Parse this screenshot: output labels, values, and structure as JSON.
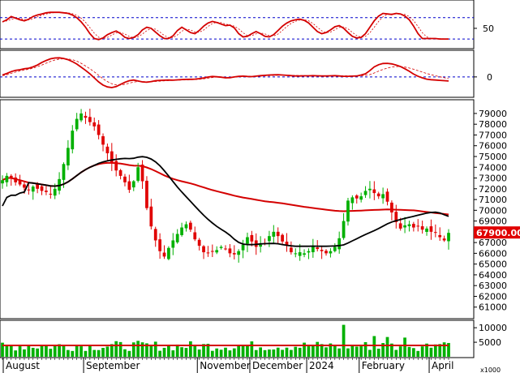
{
  "chart_data": {
    "type": "stock-candlestick",
    "last_price_label": "67900.00",
    "volume_unit": "x1000",
    "x_months": [
      "August",
      "September",
      "November",
      "December",
      "2024",
      "February",
      "April"
    ],
    "colors": {
      "up": "#00b000",
      "down": "#e00000",
      "ma_long": "#d40000",
      "ma_short": "#000000",
      "rsi": "#d40000",
      "signal": "#d40000",
      "ref_line": "#0000cc",
      "last_label_bg": "#e00000"
    },
    "rsi_panel": {
      "y_ticks": [
        {
          "value": 50,
          "label": "50"
        }
      ],
      "ylim": [
        15,
        100
      ],
      "ref_levels": [
        30,
        70
      ],
      "series": [
        62,
        66,
        72,
        69,
        66,
        64,
        67,
        72,
        75,
        77,
        79,
        80,
        80,
        80,
        79,
        78,
        75,
        70,
        62,
        52,
        40,
        31,
        29,
        32,
        38,
        42,
        45,
        40,
        33,
        31,
        33,
        38,
        47,
        52,
        50,
        43,
        36,
        31,
        31,
        36,
        46,
        52,
        47,
        42,
        40,
        46,
        54,
        60,
        63,
        61,
        58,
        55,
        56,
        51,
        40,
        34,
        35,
        40,
        44,
        40,
        35,
        34,
        38,
        46,
        54,
        60,
        64,
        66,
        67,
        65,
        60,
        52,
        44,
        40,
        42,
        47,
        53,
        55,
        50,
        42,
        35,
        32,
        33,
        40,
        52,
        64,
        73,
        78,
        77,
        76,
        78,
        77,
        73,
        66,
        54,
        40,
        31,
        31,
        31,
        31,
        30,
        30,
        30
      ]
    },
    "macd_panel": {
      "y_ticks": [
        {
          "value": 0,
          "label": "0"
        }
      ],
      "ylim": [
        -1200,
        1600
      ],
      "zero_line": 0,
      "series": [
        120,
        220,
        340,
        420,
        460,
        520,
        560,
        640,
        760,
        920,
        1050,
        1160,
        1210,
        1220,
        1180,
        1100,
        980,
        820,
        620,
        420,
        200,
        -60,
        -320,
        -520,
        -640,
        -680,
        -620,
        -480,
        -340,
        -240,
        -200,
        -260,
        -320,
        -340,
        -300,
        -240,
        -220,
        -210,
        -200,
        -210,
        -190,
        -170,
        -160,
        -150,
        -140,
        -110,
        -70,
        -10,
        30,
        10,
        -20,
        -60,
        -50,
        0,
        40,
        50,
        30,
        20,
        50,
        80,
        100,
        120,
        130,
        140,
        120,
        100,
        80,
        60,
        60,
        70,
        70,
        80,
        70,
        60,
        60,
        70,
        80,
        60,
        40,
        40,
        50,
        60,
        120,
        200,
        400,
        640,
        780,
        860,
        870,
        830,
        760,
        660,
        520,
        360,
        180,
        40,
        -60,
        -140,
        -180,
        -200,
        -220,
        -240,
        -260
      ],
      "signal": [
        80,
        140,
        230,
        310,
        380,
        440,
        490,
        560,
        650,
        760,
        880,
        990,
        1080,
        1140,
        1160,
        1150,
        1100,
        1010,
        870,
        700,
        520,
        320,
        100,
        -120,
        -300,
        -440,
        -510,
        -520,
        -470,
        -400,
        -330,
        -300,
        -300,
        -310,
        -310,
        -290,
        -270,
        -250,
        -230,
        -220,
        -210,
        -200,
        -190,
        -180,
        -170,
        -150,
        -120,
        -80,
        -40,
        -10,
        -10,
        -20,
        -30,
        -20,
        0,
        20,
        30,
        30,
        35,
        50,
        65,
        80,
        95,
        110,
        115,
        112,
        105,
        95,
        85,
        80,
        78,
        78,
        76,
        74,
        72,
        72,
        74,
        72,
        68,
        64,
        62,
        62,
        72,
        95,
        150,
        250,
        370,
        480,
        570,
        630,
        660,
        660,
        630,
        570,
        490,
        400,
        310,
        220,
        140,
        70,
        10,
        -50,
        -110
      ]
    },
    "price_panel": {
      "y_ticks": [
        {
          "value": 79000,
          "label": "79000"
        },
        {
          "value": 78000,
          "label": "78000"
        },
        {
          "value": 77000,
          "label": "77000"
        },
        {
          "value": 76000,
          "label": "76000"
        },
        {
          "value": 75000,
          "label": "75000"
        },
        {
          "value": 74000,
          "label": "74000"
        },
        {
          "value": 73000,
          "label": "73000"
        },
        {
          "value": 72000,
          "label": "72000"
        },
        {
          "value": 71000,
          "label": "71000"
        },
        {
          "value": 70000,
          "label": "70000"
        },
        {
          "value": 69000,
          "label": "69000"
        },
        {
          "value": 68000,
          "label": "68000"
        },
        {
          "value": 67000,
          "label": "67000"
        },
        {
          "value": 66000,
          "label": "66000"
        },
        {
          "value": 65000,
          "label": "65000"
        },
        {
          "value": 64000,
          "label": "64000"
        },
        {
          "value": 63000,
          "label": "63000"
        },
        {
          "value": 62000,
          "label": "62000"
        },
        {
          "value": 61000,
          "label": "61000"
        }
      ],
      "ylim": [
        60000,
        80200
      ],
      "last_price": 67900,
      "closes": [
        72800,
        73200,
        73000,
        72600,
        72400,
        72100,
        71900,
        72200,
        72000,
        71800,
        71700,
        71500,
        72000,
        72900,
        74300,
        75800,
        77400,
        78500,
        79000,
        78600,
        78200,
        77800,
        77000,
        76100,
        75300,
        74400,
        73700,
        73200,
        72600,
        71900,
        72700,
        74000,
        72700,
        70200,
        68500,
        67200,
        66200,
        65700,
        66500,
        67200,
        67800,
        68400,
        68700,
        68200,
        67300,
        66700,
        66100,
        66000,
        66200,
        66300,
        66600,
        66400,
        66000,
        65900,
        66200,
        66800,
        67500,
        67100,
        66600,
        66800,
        66900,
        67600,
        68000,
        67600,
        67100,
        66700,
        66100,
        66000,
        66100,
        66000,
        66200,
        66600,
        66400,
        66200,
        66000,
        66200,
        66600,
        67400,
        69000,
        70900,
        71200,
        71100,
        71300,
        71800,
        72000,
        71600,
        71300,
        71500,
        70800,
        69800,
        68900,
        68300,
        68600,
        68700,
        68400,
        68500,
        68200,
        68300,
        68000,
        67900,
        67500,
        67200,
        67900
      ]
    },
    "volume_panel": {
      "y_ticks": [
        {
          "value": 10000,
          "label": "10000"
        },
        {
          "value": 5000,
          "label": "5000"
        }
      ],
      "ylim": [
        0,
        12000
      ],
      "ma_level": 3900
    }
  }
}
